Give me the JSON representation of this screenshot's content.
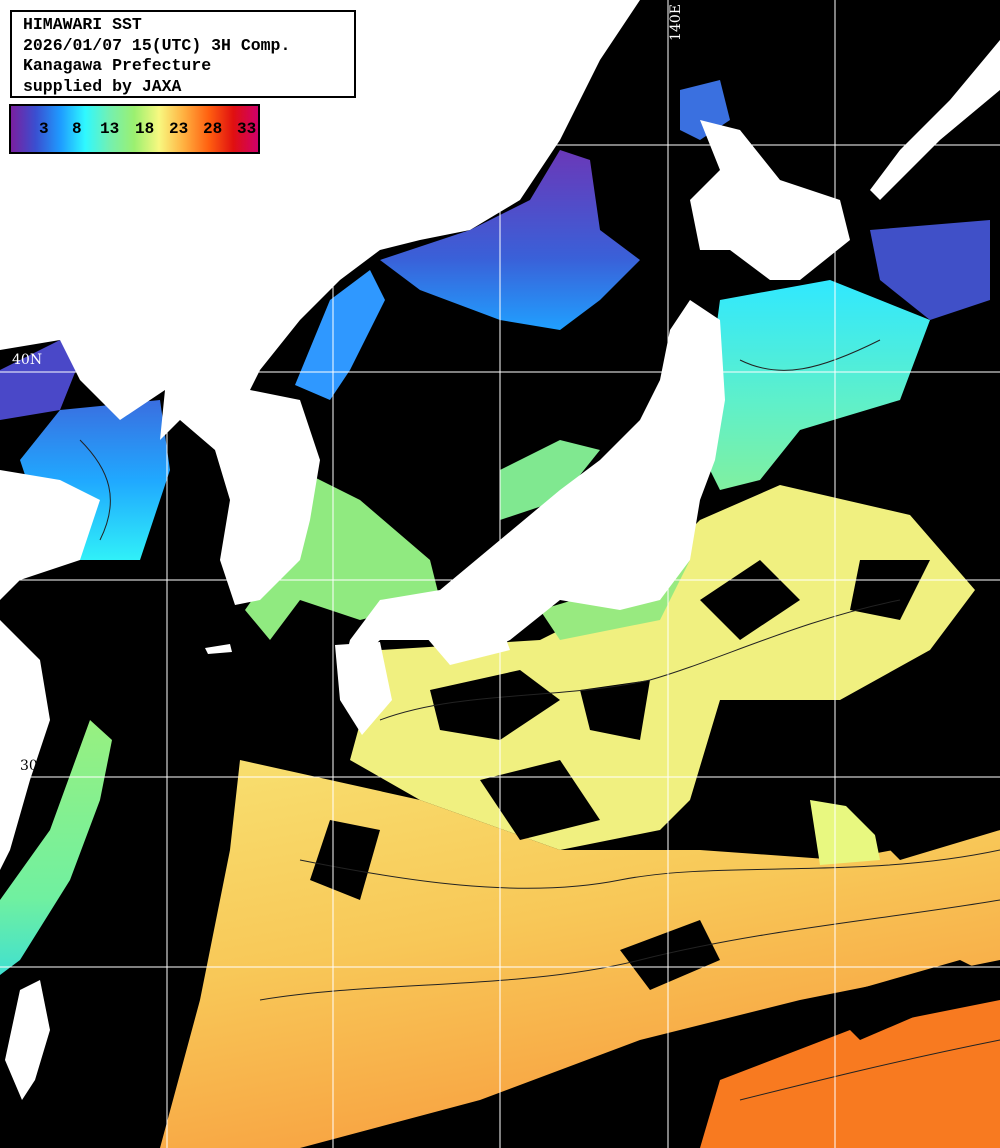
{
  "header": {
    "title": "HIMAWARI SST",
    "datetime": "2026/01/07 15(UTC) 3H Comp.",
    "region": "Kanagawa Prefecture",
    "credit": "supplied by JAXA"
  },
  "colorbar": {
    "unit_ticks": [
      "3",
      "8",
      "13",
      "18",
      "23",
      "28",
      "33"
    ],
    "colors": [
      "#7a1fa0",
      "#3a4fd0",
      "#1e9bff",
      "#2ff8ff",
      "#74f0b0",
      "#9cf070",
      "#f8f880",
      "#ffb040",
      "#ff6010",
      "#e01010",
      "#d0006a"
    ]
  },
  "grid_labels": {
    "lat_40": "40N",
    "lat_30": "30N",
    "lon_140": "140E"
  },
  "colors": {
    "land": "#ffffff",
    "cloud_nodata": "#000000",
    "grid": "#ffffff"
  }
}
